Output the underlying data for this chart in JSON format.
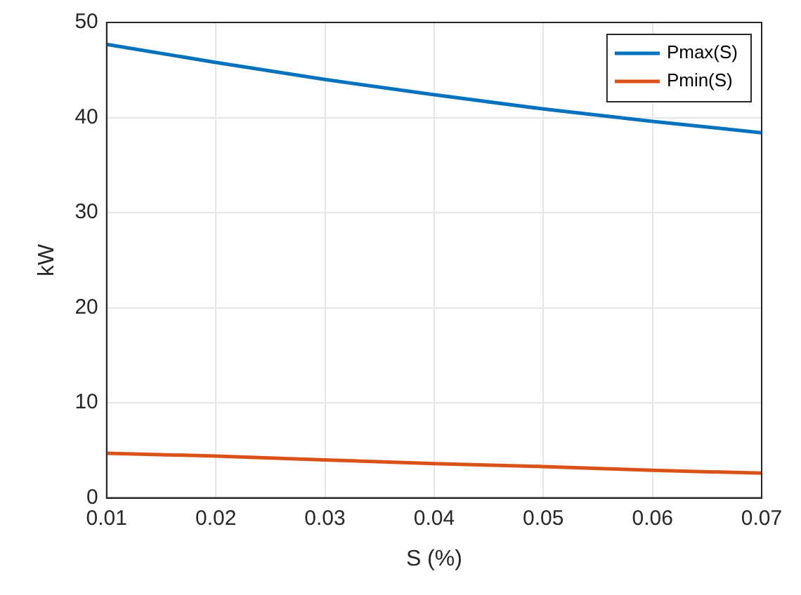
{
  "chart_data": {
    "type": "line",
    "xlabel": "S (%)",
    "ylabel": "kW",
    "x": [
      0.01,
      0.02,
      0.03,
      0.04,
      0.05,
      0.06,
      0.07
    ],
    "series": [
      {
        "name": "Pmax(S)",
        "color": "#0072bd",
        "values": [
          47.7,
          45.8,
          44.0,
          42.4,
          40.9,
          39.6,
          38.4
        ]
      },
      {
        "name": "Pmin(S)",
        "color": "#d95319",
        "values": [
          4.7,
          4.4,
          4.0,
          3.6,
          3.3,
          2.9,
          2.6
        ]
      }
    ],
    "xlim": [
      0.01,
      0.07
    ],
    "xticks": [
      0.01,
      0.02,
      0.03,
      0.04,
      0.05,
      0.06,
      0.07
    ],
    "ylim": [
      0,
      50
    ],
    "yticks": [
      0,
      10,
      20,
      30,
      40,
      50
    ],
    "grid": true,
    "legend": "top right",
    "marker": "none",
    "line_style": "solid"
  }
}
